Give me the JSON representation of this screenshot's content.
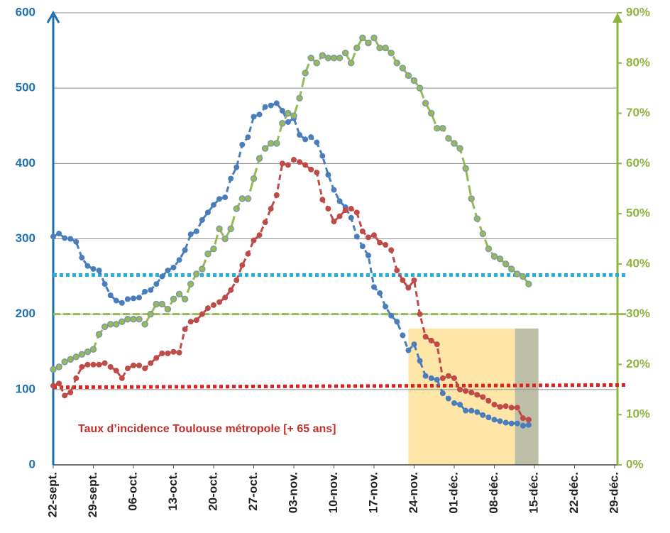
{
  "chart_data": {
    "type": "line",
    "annotation": "Taux d’incidence Toulouse métropole [+ 65 ans]",
    "x": [
      0,
      1,
      2,
      3,
      4,
      5,
      6,
      7,
      8,
      9,
      10,
      11,
      12,
      13,
      14,
      15,
      16,
      17,
      18,
      19,
      20,
      21,
      22,
      23,
      24,
      25,
      26,
      27,
      28,
      29,
      30,
      31,
      32,
      33,
      34,
      35,
      36,
      37,
      38,
      39,
      40,
      41,
      42,
      43,
      44,
      45,
      46,
      47,
      48,
      49,
      50,
      51,
      52,
      53,
      54,
      55,
      56,
      57,
      58,
      59,
      60,
      61,
      62,
      63,
      64,
      65,
      66,
      67,
      68,
      69,
      70,
      71,
      72,
      73,
      74,
      75,
      76,
      77,
      78,
      79,
      80,
      81,
      82,
      83
    ],
    "xlim": [
      0,
      98.5
    ],
    "xticks": [
      {
        "value": 0,
        "label": "22-sept."
      },
      {
        "value": 7,
        "label": "29-sept."
      },
      {
        "value": 14,
        "label": "06-oct."
      },
      {
        "value": 21,
        "label": "13-oct."
      },
      {
        "value": 28,
        "label": "20-oct."
      },
      {
        "value": 35,
        "label": "27-oct."
      },
      {
        "value": 42,
        "label": "03-nov."
      },
      {
        "value": 49,
        "label": "10-nov."
      },
      {
        "value": 56,
        "label": "17-nov."
      },
      {
        "value": 63,
        "label": "24-nov."
      },
      {
        "value": 70,
        "label": "01-déc."
      },
      {
        "value": 77,
        "label": "08-déc."
      },
      {
        "value": 84,
        "label": "15-déc."
      },
      {
        "value": 91,
        "label": "22-déc."
      },
      {
        "value": 98,
        "label": "29-déc."
      }
    ],
    "ylim": [
      0,
      600
    ],
    "yticks": [
      0,
      100,
      200,
      300,
      400,
      500,
      600
    ],
    "y2lim": [
      0,
      90
    ],
    "y2ticks": [
      {
        "value": 0,
        "label": "0%"
      },
      {
        "value": 10,
        "label": "10%"
      },
      {
        "value": 20,
        "label": "20%"
      },
      {
        "value": 30,
        "label": "30%"
      },
      {
        "value": 40,
        "label": "40%"
      },
      {
        "value": 50,
        "label": "50%"
      },
      {
        "value": 60,
        "label": "60%"
      },
      {
        "value": 70,
        "label": "70%"
      },
      {
        "value": 80,
        "label": "80%"
      },
      {
        "value": 90,
        "label": "90%"
      }
    ],
    "grid": true,
    "series": [
      {
        "color": "#4a7ebb",
        "values": [
          303,
          307,
          301,
          300,
          296,
          275,
          264,
          260,
          258,
          240,
          225,
          218,
          215,
          220,
          221,
          222,
          230,
          232,
          240,
          250,
          258,
          262,
          272,
          285,
          306,
          310,
          325,
          335,
          345,
          353,
          355,
          380,
          395,
          425,
          435,
          462,
          465,
          475,
          477,
          480,
          470,
          455,
          460,
          438,
          432,
          435,
          428,
          410,
          385,
          365,
          350,
          342,
          328,
          303,
          290,
          278,
          236,
          228,
          210,
          198,
          190,
          172,
          152,
          160,
          138,
          118,
          115,
          113,
          95,
          88,
          82,
          80,
          72,
          72,
          70,
          66,
          63,
          60,
          58,
          56,
          55,
          55,
          52,
          53
        ]
      },
      {
        "color": "#be4b48",
        "values": [
          105,
          108,
          92,
          96,
          115,
          130,
          133,
          133,
          133,
          135,
          130,
          125,
          115,
          128,
          132,
          132,
          128,
          135,
          142,
          148,
          148,
          150,
          149,
          180,
          190,
          192,
          200,
          208,
          212,
          216,
          222,
          232,
          245,
          265,
          280,
          298,
          305,
          322,
          340,
          358,
          400,
          398,
          405,
          402,
          398,
          392,
          388,
          352,
          340,
          323,
          330,
          338,
          340,
          335,
          310,
          302,
          305,
          295,
          292,
          285,
          258,
          245,
          235,
          245,
          200,
          170,
          165,
          160,
          115,
          118,
          115,
          100,
          98,
          96,
          93,
          90,
          85,
          80,
          77,
          78,
          76,
          76,
          62,
          60
        ]
      },
      {
        "color": "#98b954",
        "axis": "y2",
        "values": [
          19,
          19.5,
          20.5,
          21,
          21.5,
          22,
          22.5,
          23,
          26,
          27.5,
          28,
          28,
          28.5,
          29,
          29,
          29,
          28,
          30,
          32,
          32,
          31,
          33,
          34,
          33,
          36,
          38,
          39,
          42,
          43,
          47,
          45,
          47,
          51,
          53,
          53,
          57,
          61,
          63,
          64,
          64,
          68,
          70,
          69.5,
          73,
          78,
          81,
          80,
          81.5,
          81,
          81,
          81,
          82,
          80,
          83,
          85,
          84,
          85,
          83,
          83,
          82,
          80,
          79,
          77.5,
          76.5,
          75,
          72,
          70,
          67,
          67,
          65,
          64,
          63,
          59,
          53,
          49,
          46,
          43,
          41.5,
          41,
          40,
          39,
          38,
          37.5,
          36
        ]
      }
    ],
    "reference_lines": [
      {
        "axis": "y",
        "values": [
          252,
          252
        ],
        "color": "#1fb0e0"
      },
      {
        "axis": "y2",
        "values": [
          30,
          30
        ],
        "color": "#98b954"
      },
      {
        "axis": "y",
        "values": [
          103,
          106
        ],
        "color": "#e02020"
      }
    ],
    "spans": [
      {
        "x": [
          62,
          80.6
        ],
        "top": 181,
        "color": "#fde6a8"
      },
      {
        "x": [
          80.6,
          84.7
        ],
        "top": 181,
        "color": "#bdbfa6"
      }
    ]
  }
}
